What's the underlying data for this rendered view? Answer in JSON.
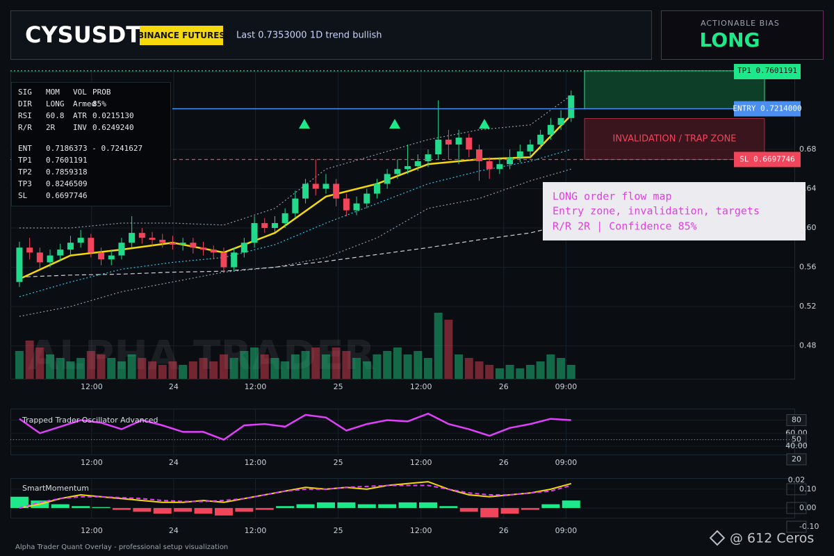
{
  "header": {
    "symbol": "CYSUSDT",
    "exchange": "BINANCE FUTURES",
    "last": "Last 0.7353000",
    "trend": "1D trend bullish"
  },
  "bias": {
    "label": "ACTIONABLE BIAS",
    "value": "LONG"
  },
  "stats": {
    "rows": [
      [
        "SIG",
        "MOM",
        "VOL",
        "PROB"
      ],
      [
        "DIR",
        "LONG",
        "Armed",
        "85%"
      ],
      [
        "RSI",
        "60.8",
        "ATR",
        "0.0215130"
      ],
      [
        "R/R",
        "2R",
        "INV",
        "0.6249240"
      ],
      [
        "ENT",
        "0.7186373 - 0.7241627"
      ],
      [
        "TP1",
        "0.7601191"
      ],
      [
        "TP2",
        "0.7859318"
      ],
      [
        "TP3",
        "0.8246509"
      ],
      [
        "SL",
        "0.6697746"
      ]
    ]
  },
  "annotation": [
    "LONG order flow map",
    "Entry zone, invalidation, targets",
    "R/R 2R | Confidence 85%"
  ],
  "footer": "Alpha Trader Quant Overlay - professional setup visualization",
  "credit": "@ 612 Ceros",
  "chart_data": [
    {
      "type": "candlestick",
      "watermark": "ALPHA TRADER",
      "zone_label": "INVALIDATION / TRAP ZONE",
      "xlim": [
        -0.88,
        75.85
      ],
      "xticks": [
        {
          "value": 7.07,
          "label": "12:00"
        },
        {
          "value": 15.1,
          "label": "24"
        },
        {
          "value": 23.1,
          "label": "12:00"
        },
        {
          "value": 31.2,
          "label": "25"
        },
        {
          "value": 39.3,
          "label": "12:00"
        },
        {
          "value": 47.4,
          "label": "26"
        },
        {
          "value": 53.5,
          "label": "09:00"
        }
      ],
      "ylim": [
        0.4464,
        0.7593
      ],
      "yticks": [
        0.68,
        0.64,
        {
          "value": 0.6,
          "label": "0.60"
        },
        0.56,
        0.52,
        0.48
      ],
      "up_color": "#22d98c",
      "down_color": "#f0455a",
      "open": [
        0.545,
        0.58,
        0.575,
        0.565,
        0.572,
        0.578,
        0.585,
        0.59,
        0.575,
        0.568,
        0.572,
        0.585,
        0.595,
        0.59,
        0.588,
        0.585,
        0.583,
        0.585,
        0.58,
        0.578,
        0.575,
        0.56,
        0.575,
        0.585,
        0.605,
        0.6,
        0.605,
        0.615,
        0.63,
        0.645,
        0.64,
        0.645,
        0.63,
        0.618,
        0.625,
        0.635,
        0.645,
        0.655,
        0.66,
        0.663,
        0.668,
        0.675,
        0.69,
        0.685,
        0.692,
        0.68,
        0.668,
        0.66,
        0.665,
        0.672,
        0.678,
        0.685,
        0.695,
        0.705,
        0.712
      ],
      "high": [
        0.586,
        0.59,
        0.58,
        0.578,
        0.584,
        0.592,
        0.598,
        0.594,
        0.58,
        0.578,
        0.59,
        0.612,
        0.6,
        0.596,
        0.594,
        0.592,
        0.59,
        0.59,
        0.586,
        0.582,
        0.58,
        0.58,
        0.59,
        0.612,
        0.61,
        0.612,
        0.62,
        0.638,
        0.65,
        0.67,
        0.655,
        0.65,
        0.635,
        0.632,
        0.64,
        0.65,
        0.66,
        0.67,
        0.685,
        0.675,
        0.68,
        0.73,
        0.7,
        0.7,
        0.696,
        0.685,
        0.672,
        0.672,
        0.68,
        0.685,
        0.69,
        0.7,
        0.712,
        0.72,
        0.74
      ],
      "low": [
        0.54,
        0.568,
        0.558,
        0.56,
        0.566,
        0.572,
        0.58,
        0.57,
        0.562,
        0.562,
        0.568,
        0.58,
        0.584,
        0.582,
        0.58,
        0.578,
        0.577,
        0.574,
        0.572,
        0.568,
        0.555,
        0.556,
        0.57,
        0.58,
        0.595,
        0.596,
        0.6,
        0.61,
        0.625,
        0.633,
        0.635,
        0.622,
        0.612,
        0.613,
        0.62,
        0.63,
        0.64,
        0.65,
        0.655,
        0.658,
        0.662,
        0.67,
        0.67,
        0.665,
        0.672,
        0.648,
        0.65,
        0.655,
        0.66,
        0.667,
        0.672,
        0.68,
        0.69,
        0.7,
        0.708
      ],
      "close": [
        0.58,
        0.575,
        0.565,
        0.572,
        0.578,
        0.585,
        0.59,
        0.575,
        0.568,
        0.572,
        0.585,
        0.595,
        0.59,
        0.588,
        0.585,
        0.583,
        0.585,
        0.58,
        0.578,
        0.575,
        0.56,
        0.575,
        0.585,
        0.605,
        0.6,
        0.605,
        0.615,
        0.63,
        0.645,
        0.64,
        0.645,
        0.63,
        0.618,
        0.625,
        0.635,
        0.645,
        0.655,
        0.66,
        0.663,
        0.668,
        0.675,
        0.69,
        0.685,
        0.692,
        0.68,
        0.668,
        0.66,
        0.665,
        0.672,
        0.678,
        0.685,
        0.695,
        0.705,
        0.712,
        0.735
      ],
      "volume": [
        40,
        55,
        45,
        35,
        30,
        25,
        30,
        40,
        35,
        30,
        25,
        35,
        30,
        25,
        20,
        25,
        20,
        25,
        30,
        25,
        35,
        30,
        40,
        45,
        35,
        30,
        25,
        35,
        40,
        45,
        35,
        45,
        40,
        30,
        25,
        35,
        40,
        45,
        35,
        40,
        30,
        95,
        85,
        35,
        30,
        25,
        20,
        15,
        20,
        15,
        20,
        25,
        35,
        30,
        20
      ],
      "lines": [
        {
          "color": "#8fa0b0",
          "style": "dotted",
          "x": [
            0,
            5,
            10,
            15,
            20,
            25,
            30,
            35,
            40,
            45,
            50,
            54
          ],
          "values": [
            0.6,
            0.6,
            0.605,
            0.605,
            0.603,
            0.62,
            0.66,
            0.675,
            0.69,
            0.7,
            0.705,
            0.735
          ]
        },
        {
          "color": "#8fa0b0",
          "style": "dotted",
          "x": [
            0,
            5,
            10,
            15,
            20,
            25,
            30,
            35,
            40,
            45,
            50,
            54
          ],
          "values": [
            0.51,
            0.52,
            0.535,
            0.545,
            0.555,
            0.56,
            0.57,
            0.59,
            0.62,
            0.63,
            0.648,
            0.66
          ]
        },
        {
          "color": "#d0d4da",
          "style": "dashed",
          "x": [
            0,
            5,
            10,
            15,
            20,
            25,
            30,
            35,
            40,
            45,
            50,
            54
          ],
          "values": [
            0.55,
            0.552,
            0.553,
            0.555,
            0.556,
            0.56,
            0.566,
            0.573,
            0.58,
            0.588,
            0.595,
            0.605
          ]
        },
        {
          "color": "#2fc6e8",
          "style": "dotted",
          "x": [
            0,
            5,
            10,
            15,
            20,
            25,
            30,
            35,
            40,
            45,
            50,
            54
          ],
          "values": [
            0.53,
            0.545,
            0.558,
            0.565,
            0.57,
            0.583,
            0.605,
            0.625,
            0.645,
            0.658,
            0.668,
            0.68
          ]
        },
        {
          "color": "#f5d90a",
          "style": "solid",
          "x": [
            0,
            5,
            10,
            15,
            20,
            25,
            30,
            35,
            40,
            45,
            50,
            54
          ],
          "values": [
            0.548,
            0.572,
            0.578,
            0.585,
            0.575,
            0.595,
            0.632,
            0.645,
            0.665,
            0.67,
            0.672,
            0.715
          ]
        }
      ],
      "levels": [
        {
          "label": "TP1 0.7601191",
          "value": 0.7601191,
          "color": "#1de98b"
        },
        {
          "label": "ENTRY 0.7214000",
          "value": 0.7214,
          "color": "#4a8ff0"
        },
        {
          "label": "SL 0.6697746",
          "value": 0.6697746,
          "color": "#f0455a"
        }
      ]
    },
    {
      "type": "line",
      "title": "Trapped Trader Oscillator Advanced",
      "ylim": [
        16.7,
        97.5
      ],
      "yticks": [
        80,
        {
          "value": 60,
          "label": "60.00"
        },
        50,
        {
          "value": 40,
          "label": "40.00"
        },
        20
      ],
      "level_line": 50,
      "series": [
        {
          "color": "#e040fb",
          "x": [
            0,
            2,
            4,
            6,
            8,
            10,
            12,
            14,
            16,
            18,
            20,
            22,
            24,
            26,
            28,
            30,
            32,
            34,
            36,
            38,
            40,
            42,
            44,
            46,
            48,
            50,
            52,
            54
          ],
          "values": [
            82,
            60,
            70,
            80,
            76,
            66,
            80,
            72,
            62,
            62,
            50,
            72,
            74,
            70,
            88,
            84,
            64,
            74,
            80,
            78,
            90,
            74,
            66,
            56,
            68,
            74,
            82,
            80
          ]
        }
      ]
    },
    {
      "type": "combo",
      "title": "SmartMomentum",
      "top_label": "0.02",
      "ylim": [
        -0.115,
        0.159
      ],
      "yticks": [
        {
          "value": 0.1,
          "label": "0.10"
        },
        {
          "value": 0,
          "label": "0.00"
        },
        {
          "value": -0.1,
          "label": "-0.10"
        }
      ],
      "x": [
        0,
        2,
        4,
        6,
        8,
        10,
        12,
        14,
        16,
        18,
        20,
        22,
        24,
        26,
        28,
        30,
        32,
        34,
        36,
        38,
        40,
        42,
        44,
        46,
        48,
        50,
        52,
        54
      ],
      "histogram": [
        0.06,
        0.04,
        0.02,
        0.01,
        0.005,
        -0.01,
        -0.02,
        -0.03,
        -0.02,
        -0.03,
        -0.04,
        -0.02,
        -0.01,
        0.01,
        0.02,
        0.03,
        0.03,
        0.02,
        0.02,
        0.03,
        0.03,
        0.01,
        -0.02,
        -0.05,
        -0.03,
        -0.01,
        0.02,
        0.04
      ],
      "up_color": "#1de98b",
      "down_color": "#f0455a",
      "series": [
        {
          "color": "#f5d90a",
          "style": "solid",
          "values": [
            0.0,
            0.02,
            0.05,
            0.07,
            0.06,
            0.05,
            0.04,
            0.03,
            0.03,
            0.04,
            0.03,
            0.05,
            0.07,
            0.09,
            0.11,
            0.1,
            0.11,
            0.1,
            0.12,
            0.13,
            0.14,
            0.1,
            0.07,
            0.06,
            0.07,
            0.08,
            0.1,
            0.13
          ]
        },
        {
          "color": "#e040fb",
          "style": "dashed",
          "values": [
            0.0,
            0.03,
            0.05,
            0.06,
            0.06,
            0.055,
            0.05,
            0.04,
            0.035,
            0.035,
            0.04,
            0.05,
            0.07,
            0.09,
            0.1,
            0.1,
            0.11,
            0.115,
            0.12,
            0.12,
            0.12,
            0.1,
            0.08,
            0.07,
            0.07,
            0.08,
            0.09,
            0.12
          ]
        }
      ]
    }
  ]
}
